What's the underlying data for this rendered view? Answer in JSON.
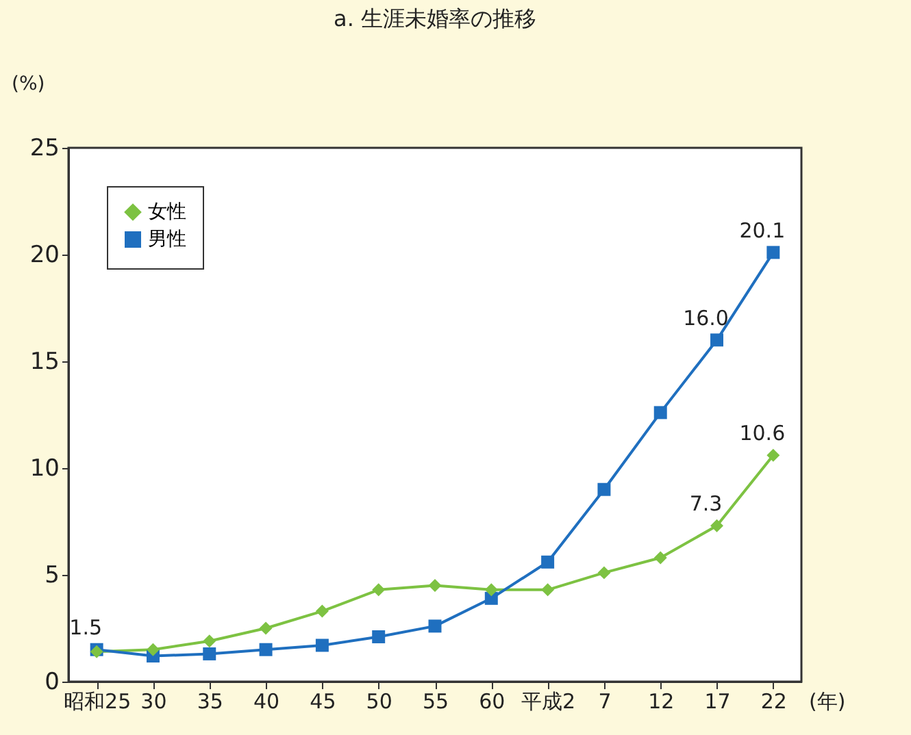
{
  "chart_data": {
    "type": "line",
    "title": "a. 生涯未婚率の推移",
    "xlabel": "(年)",
    "ylabel": "(%)",
    "categories": [
      "昭和25",
      "30",
      "35",
      "40",
      "45",
      "50",
      "55",
      "60",
      "平成2",
      "7",
      "12",
      "17",
      "22"
    ],
    "series": [
      {
        "name": "女性",
        "color": "#7dc242",
        "marker": "diamond",
        "values": [
          1.4,
          1.5,
          1.9,
          2.5,
          3.3,
          4.3,
          4.5,
          4.3,
          4.3,
          5.1,
          5.8,
          7.3,
          10.6
        ],
        "value_labels": [
          null,
          null,
          null,
          null,
          null,
          null,
          null,
          null,
          null,
          null,
          null,
          "7.3",
          "10.6"
        ]
      },
      {
        "name": "男性",
        "color": "#1f6fbf",
        "marker": "square",
        "values": [
          1.5,
          1.2,
          1.3,
          1.5,
          1.7,
          2.1,
          2.6,
          3.9,
          5.6,
          9.0,
          12.6,
          16.0,
          20.1
        ],
        "value_labels": [
          "1.5",
          null,
          null,
          null,
          null,
          null,
          null,
          null,
          null,
          null,
          null,
          "16.0",
          "20.1"
        ]
      }
    ],
    "ylim": [
      0,
      25
    ],
    "yticks": [
      0,
      5,
      10,
      15,
      20,
      25
    ],
    "grid": false,
    "legend": "top left",
    "line_style": "solid"
  }
}
